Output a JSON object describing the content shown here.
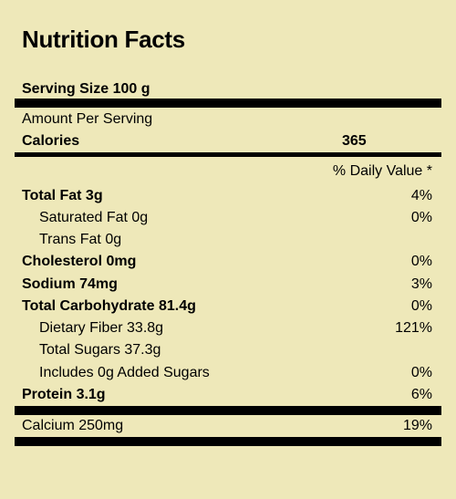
{
  "title": "Nutrition Facts",
  "serving_size": "Serving Size 100 g",
  "amount_per_serving": "Amount Per Serving",
  "calories": {
    "label": "Calories",
    "value": "365"
  },
  "daily_value_header": "% Daily Value *",
  "nutrients": [
    {
      "label": "Total Fat 3g",
      "dv": "4%"
    },
    {
      "label": "Saturated Fat 0g",
      "dv": "0%"
    },
    {
      "label": "Trans Fat 0g",
      "dv": ""
    },
    {
      "label": "Cholesterol 0mg",
      "dv": "0%"
    },
    {
      "label": "Sodium 74mg",
      "dv": "3%"
    },
    {
      "label": "Total Carbohydrate 81.4g",
      "dv": "0%"
    },
    {
      "label": "Dietary Fiber 33.8g",
      "dv": "121%"
    },
    {
      "label": "Total Sugars 37.3g",
      "dv": ""
    },
    {
      "label": "Includes 0g Added Sugars",
      "dv": "0%"
    },
    {
      "label": "Protein 3.1g",
      "dv": "6%"
    }
  ],
  "minerals": [
    {
      "label": "Calcium 250mg",
      "dv": "19%"
    }
  ]
}
